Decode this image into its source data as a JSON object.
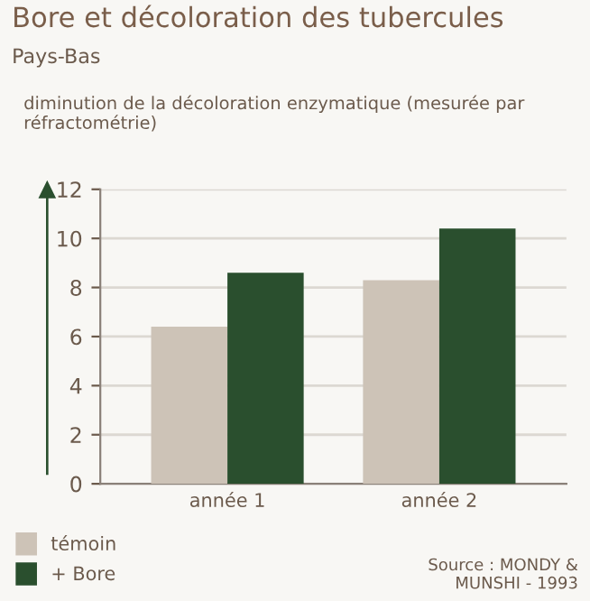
{
  "chart_data": {
    "type": "bar",
    "title": "Bore et décoloration des tubercules",
    "subtitle": "Pays-Bas",
    "ylabel": "diminution de la décoloration enzymatique (mesurée par réfractométrie)",
    "categories": [
      "année 1",
      "année 2"
    ],
    "series": [
      {
        "name": "témoin",
        "color": "#cdc3b7",
        "values": [
          6.4,
          8.3
        ]
      },
      {
        "name": "+ Bore",
        "color": "#2a4f2e",
        "values": [
          8.6,
          10.4
        ]
      }
    ],
    "ylim": [
      0,
      12
    ],
    "yticks": [
      0,
      2,
      4,
      6,
      8,
      10,
      12
    ],
    "grid": "y",
    "legend": "bottom left",
    "annotations": [
      "Source : MONDY &\nMUNSHI - 1993"
    ]
  }
}
